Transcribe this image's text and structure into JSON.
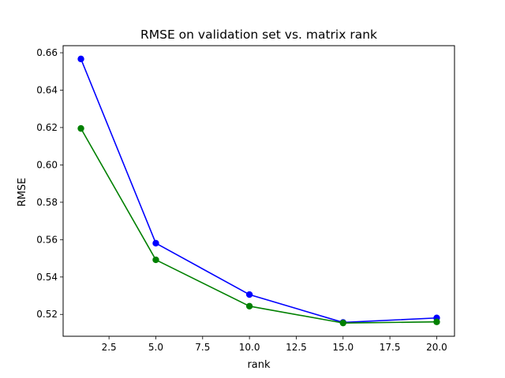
{
  "chart_data": {
    "type": "line",
    "title": "RMSE on validation set vs. matrix rank",
    "xlabel": "rank",
    "ylabel": "RMSE",
    "x": [
      1,
      5,
      10,
      15,
      20
    ],
    "series": [
      {
        "color": "#0000ff",
        "marker": "circle",
        "values": [
          0.6567,
          0.5581,
          0.5306,
          0.5157,
          0.5181
        ]
      },
      {
        "color": "#008000",
        "marker": "circle",
        "values": [
          0.6195,
          0.5492,
          0.5244,
          0.5154,
          0.516
        ]
      }
    ],
    "xlim": [
      0.05,
      20.95
    ],
    "ylim": [
      0.5083,
      0.6638
    ],
    "xticks": [
      2.5,
      5.0,
      7.5,
      10.0,
      12.5,
      15.0,
      17.5,
      20.0
    ],
    "xtick_labels": [
      "2.5",
      "5.0",
      "7.5",
      "10.0",
      "12.5",
      "15.0",
      "17.5",
      "20.0"
    ],
    "yticks": [
      0.52,
      0.54,
      0.56,
      0.58,
      0.6,
      0.62,
      0.64,
      0.66
    ],
    "ytick_labels": [
      "0.52",
      "0.54",
      "0.56",
      "0.58",
      "0.60",
      "0.62",
      "0.64",
      "0.66"
    ],
    "grid": false,
    "legend": "none"
  }
}
